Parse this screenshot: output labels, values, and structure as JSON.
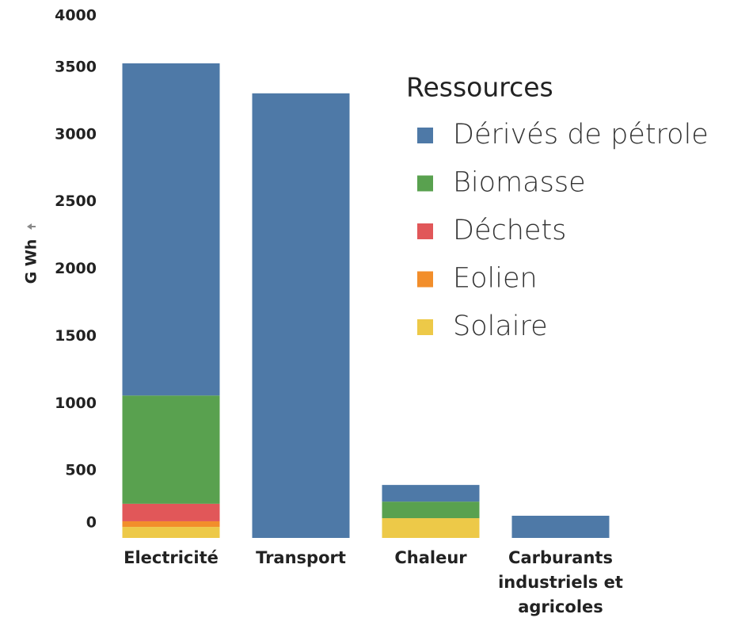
{
  "chart_data": {
    "type": "stacked_bar",
    "y_label": "G Wh",
    "legend_title": "Ressources",
    "categories": [
      "Electricité",
      "Transport",
      "Chaleur",
      "Carburants industriels et agricoles"
    ],
    "series": [
      {
        "name": "Dérivés de pétrole",
        "color": "#4e79a7",
        "values": [
          2470,
          3306,
          124,
          165
        ]
      },
      {
        "name": "Biomasse",
        "color": "#59a14f",
        "values": [
          805,
          null,
          123,
          null
        ]
      },
      {
        "name": "Déchets",
        "color": "#e15759",
        "values": [
          130,
          null,
          null,
          null
        ]
      },
      {
        "name": "Eolien",
        "color": "#f28e2b",
        "values": [
          42,
          null,
          null,
          null
        ]
      },
      {
        "name": "Solaire",
        "color": "#edc948",
        "values": [
          82,
          null,
          147,
          null
        ]
      }
    ],
    "ylim": [
      0,
      4000
    ],
    "yticks": [
      0,
      500,
      1000,
      1500,
      2000,
      2500,
      3000,
      3500,
      4000
    ],
    "grid": false,
    "legend": "right"
  }
}
